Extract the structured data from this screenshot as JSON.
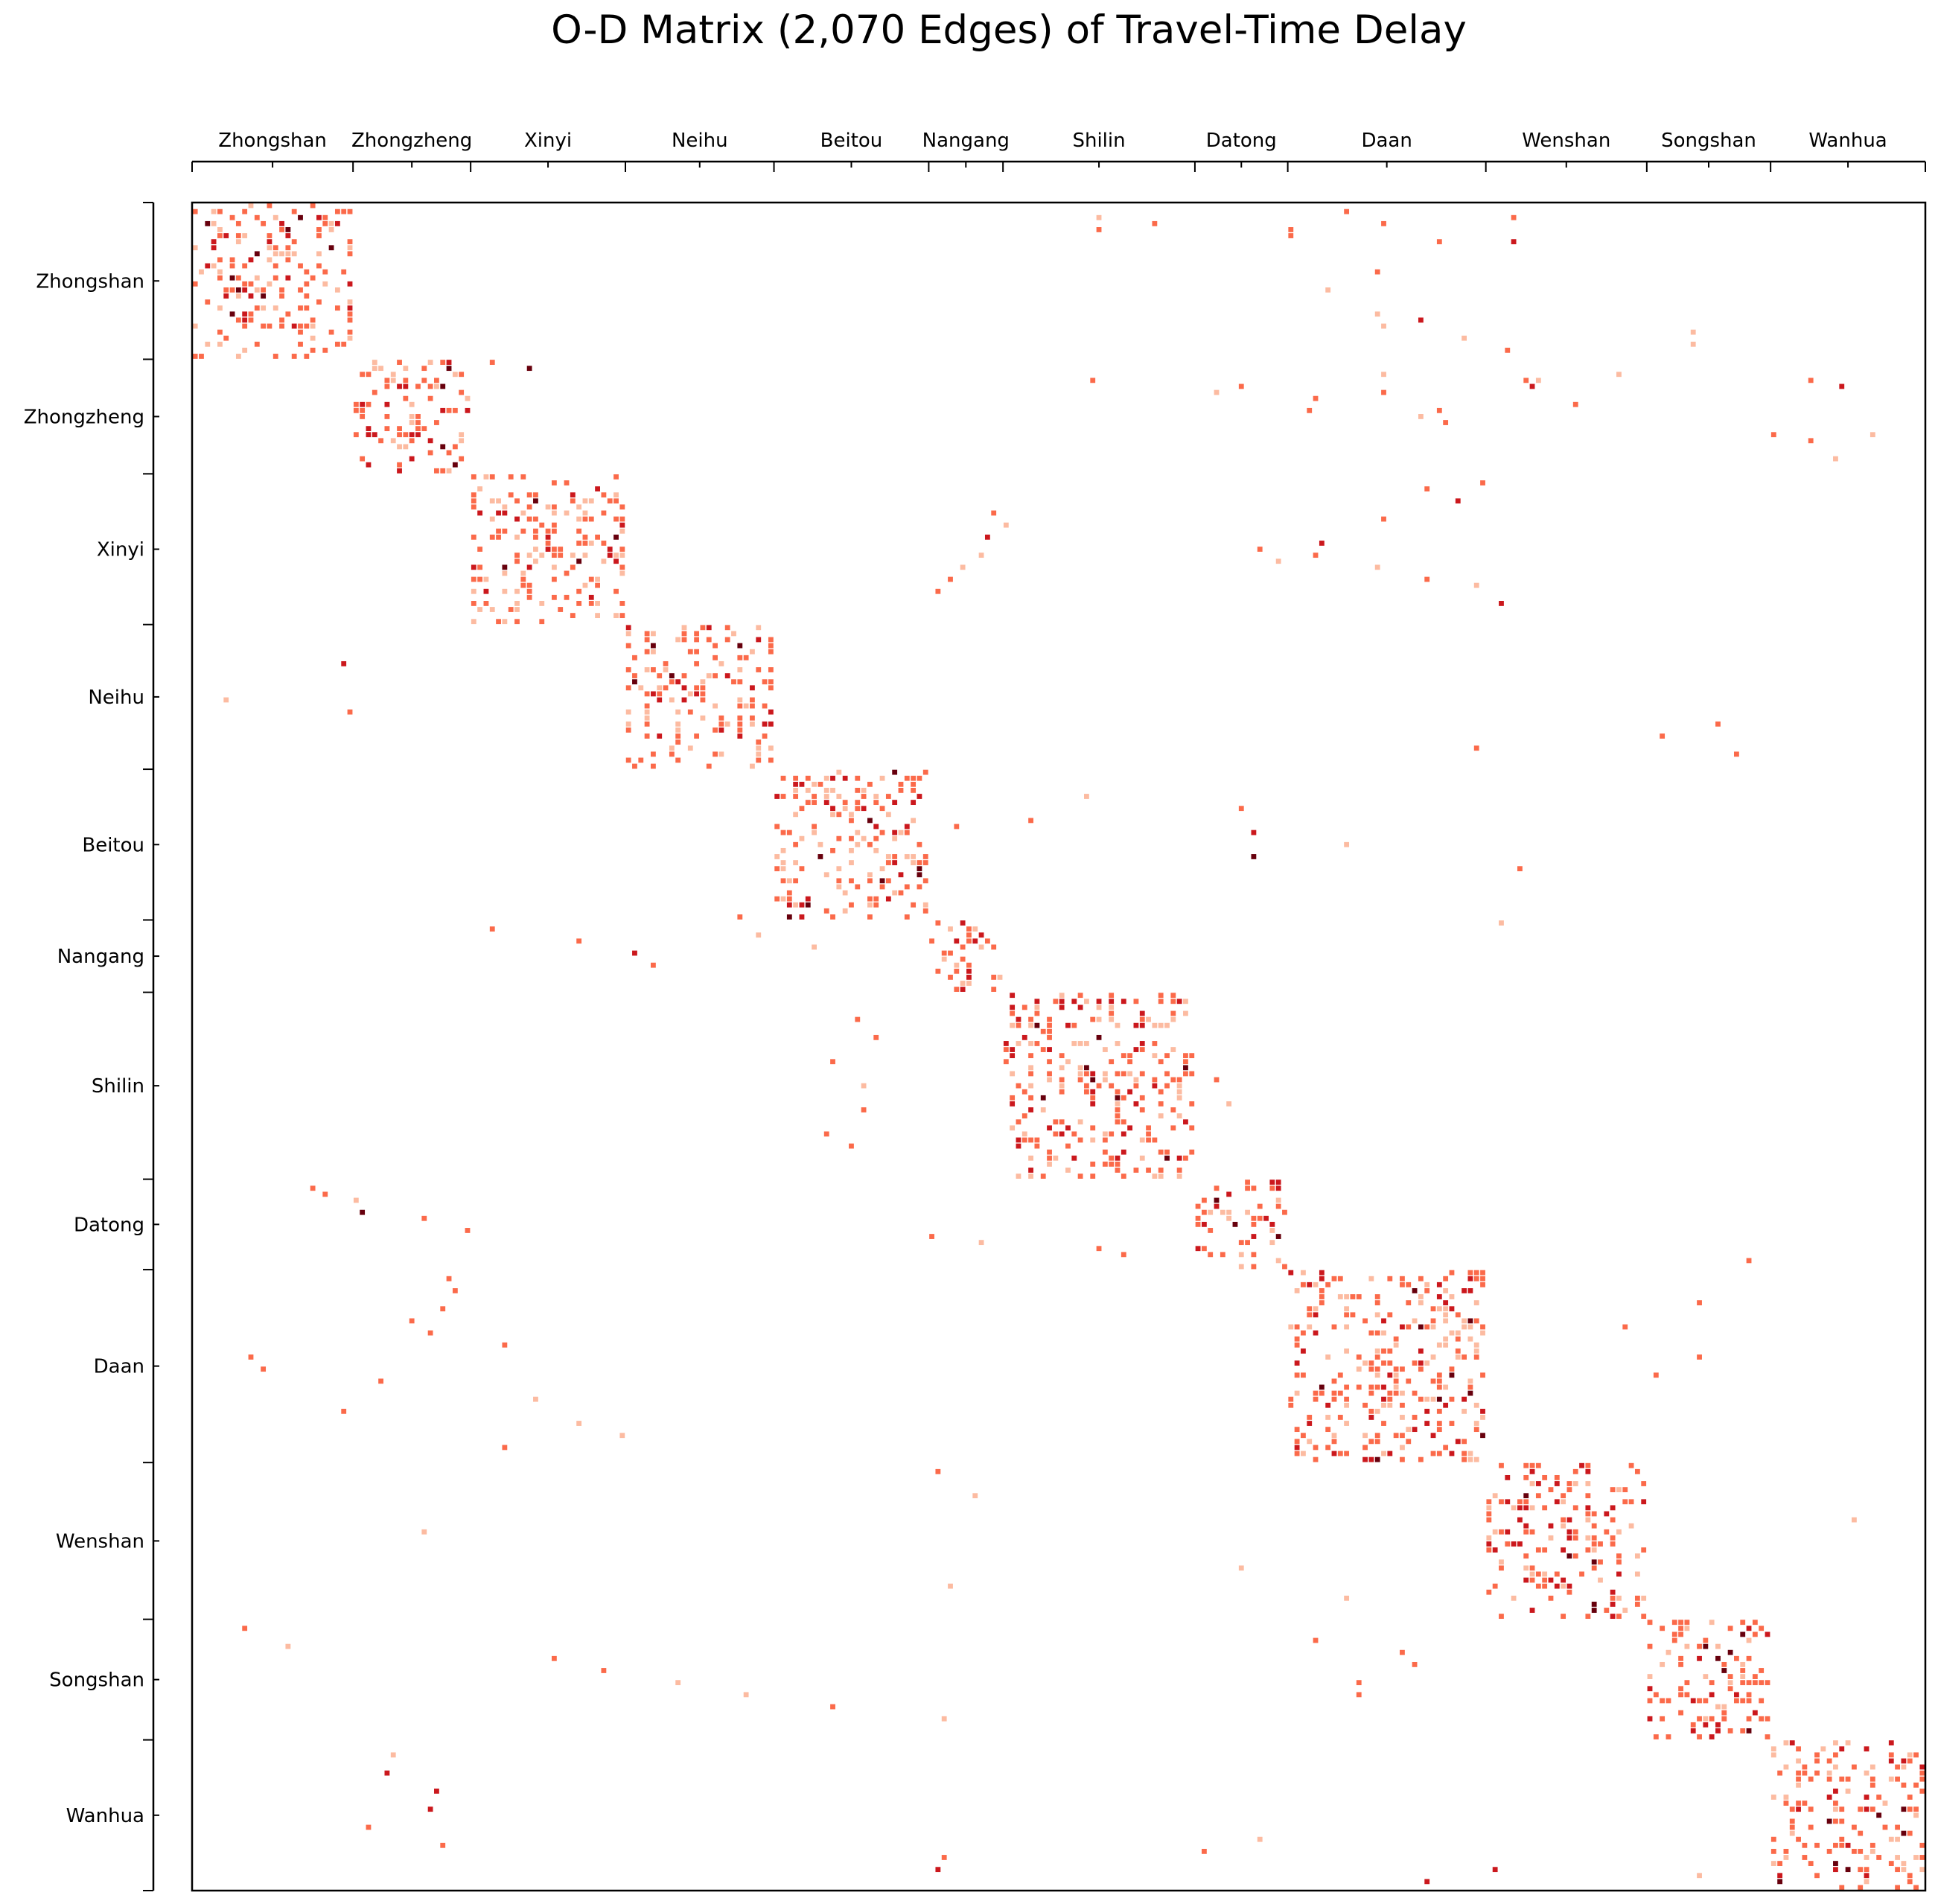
{
  "chart_data": {
    "type": "heatmap",
    "title": "O-D Matrix (2,070 Edges) of Travel-Time Delay",
    "xlabel": "",
    "ylabel": "",
    "total_nodes": 280,
    "edge_count": 2070,
    "colormap": "Reds",
    "color_range": [
      "#fcbba1",
      "#fb6a4a",
      "#cb181d",
      "#67000d"
    ],
    "grid": false,
    "x_axis_position": "top",
    "districts": [
      {
        "name": "Zhongshan",
        "start": 0,
        "size": 26
      },
      {
        "name": "Zhongzheng",
        "start": 26,
        "size": 19
      },
      {
        "name": "Xinyi",
        "start": 45,
        "size": 25
      },
      {
        "name": "Neihu",
        "start": 70,
        "size": 24
      },
      {
        "name": "Beitou",
        "start": 94,
        "size": 25
      },
      {
        "name": "Nangang",
        "start": 119,
        "size": 12
      },
      {
        "name": "Shilin",
        "start": 131,
        "size": 31
      },
      {
        "name": "Datong",
        "start": 162,
        "size": 15
      },
      {
        "name": "Daan",
        "start": 177,
        "size": 32
      },
      {
        "name": "Wenshan",
        "start": 209,
        "size": 26
      },
      {
        "name": "Songshan",
        "start": 235,
        "size": 20
      },
      {
        "name": "Wanhua",
        "start": 255,
        "size": 25
      }
    ],
    "within_district_density": 0.24,
    "between_district_cells": [
      [
        2,
        146
      ],
      [
        4,
        146
      ],
      [
        3,
        155
      ],
      [
        4,
        177
      ],
      [
        5,
        177
      ],
      [
        1,
        186
      ],
      [
        6,
        201
      ],
      [
        3,
        192
      ],
      [
        2,
        213
      ],
      [
        6,
        213
      ],
      [
        14,
        183
      ],
      [
        11,
        191
      ],
      [
        18,
        191
      ],
      [
        20,
        192
      ],
      [
        19,
        198
      ],
      [
        22,
        205
      ],
      [
        24,
        212
      ],
      [
        23,
        242
      ],
      [
        21,
        242
      ],
      [
        26,
        48
      ],
      [
        27,
        54
      ],
      [
        29,
        145
      ],
      [
        30,
        169
      ],
      [
        31,
        165
      ],
      [
        34,
        201
      ],
      [
        35,
        198
      ],
      [
        36,
        202
      ],
      [
        38,
        255
      ],
      [
        39,
        261
      ],
      [
        40,
        288
      ],
      [
        41,
        290
      ],
      [
        42,
        265
      ],
      [
        33,
        223
      ],
      [
        32,
        181
      ],
      [
        34,
        180
      ],
      [
        31,
        192
      ],
      [
        30,
        216
      ],
      [
        28,
        192
      ],
      [
        28,
        230
      ],
      [
        29,
        215
      ],
      [
        29,
        261
      ],
      [
        30,
        266
      ],
      [
        29,
        217
      ],
      [
        39,
        280
      ],
      [
        38,
        271
      ],
      [
        46,
        208
      ],
      [
        47,
        199
      ],
      [
        49,
        204
      ],
      [
        52,
        192
      ],
      [
        56,
        182
      ],
      [
        58,
        181
      ],
      [
        60,
        191
      ],
      [
        62,
        199
      ],
      [
        63,
        207
      ],
      [
        66,
        211
      ],
      [
        51,
        129
      ],
      [
        53,
        131
      ],
      [
        55,
        128
      ],
      [
        58,
        127
      ],
      [
        60,
        124
      ],
      [
        62,
        122
      ],
      [
        64,
        120
      ],
      [
        57,
        172
      ],
      [
        59,
        175
      ],
      [
        76,
        24
      ],
      [
        82,
        5
      ],
      [
        84,
        25
      ],
      [
        90,
        207
      ],
      [
        88,
        237
      ],
      [
        86,
        246
      ],
      [
        91,
        249
      ],
      [
        98,
        144
      ],
      [
        100,
        169
      ],
      [
        102,
        135
      ],
      [
        104,
        171
      ],
      [
        108,
        171
      ],
      [
        106,
        186
      ],
      [
        110,
        214
      ],
      [
        103,
        123
      ],
      [
        120,
        48
      ],
      [
        122,
        62
      ],
      [
        124,
        71
      ],
      [
        126,
        74
      ],
      [
        118,
        88
      ],
      [
        121,
        91
      ],
      [
        123,
        100
      ],
      [
        125,
        121
      ],
      [
        119,
        211
      ],
      [
        135,
        107
      ],
      [
        138,
        110
      ],
      [
        142,
        103
      ],
      [
        146,
        108
      ],
      [
        150,
        108
      ],
      [
        154,
        102
      ],
      [
        156,
        106
      ],
      [
        140,
        137
      ],
      [
        145,
        165
      ],
      [
        149,
        167
      ],
      [
        152,
        143
      ],
      [
        158,
        149
      ],
      [
        163,
        19
      ],
      [
        164,
        21
      ],
      [
        165,
        26
      ],
      [
        167,
        27
      ],
      [
        168,
        37
      ],
      [
        170,
        44
      ],
      [
        171,
        119
      ],
      [
        172,
        127
      ],
      [
        173,
        146
      ],
      [
        174,
        150
      ],
      [
        175,
        251
      ],
      [
        178,
        41
      ],
      [
        180,
        42
      ],
      [
        183,
        40
      ],
      [
        185,
        35
      ],
      [
        187,
        38
      ],
      [
        189,
        50
      ],
      [
        191,
        9
      ],
      [
        193,
        11
      ],
      [
        195,
        30
      ],
      [
        198,
        55
      ],
      [
        200,
        24
      ],
      [
        202,
        62
      ],
      [
        204,
        69
      ],
      [
        206,
        50
      ],
      [
        182,
        243
      ],
      [
        186,
        231
      ],
      [
        191,
        243
      ],
      [
        194,
        236
      ],
      [
        210,
        120
      ],
      [
        214,
        126
      ],
      [
        217,
        209
      ],
      [
        220,
        37
      ],
      [
        224,
        233
      ],
      [
        218,
        268
      ],
      [
        226,
        169
      ],
      [
        229,
        122
      ],
      [
        231,
        186
      ],
      [
        236,
        8
      ],
      [
        239,
        15
      ],
      [
        241,
        58
      ],
      [
        243,
        66
      ],
      [
        245,
        78
      ],
      [
        247,
        89
      ],
      [
        249,
        103
      ],
      [
        251,
        121
      ],
      [
        238,
        181
      ],
      [
        240,
        195
      ],
      [
        242,
        197
      ],
      [
        245,
        188
      ],
      [
        247,
        188
      ],
      [
        257,
        32
      ],
      [
        260,
        31
      ],
      [
        263,
        39
      ],
      [
        266,
        38
      ],
      [
        269,
        28
      ],
      [
        272,
        40
      ],
      [
        274,
        121
      ],
      [
        276,
        120
      ],
      [
        271,
        172
      ],
      [
        273,
        163
      ],
      [
        277,
        243
      ],
      [
        278,
        199
      ],
      [
        276,
        210
      ]
    ]
  }
}
